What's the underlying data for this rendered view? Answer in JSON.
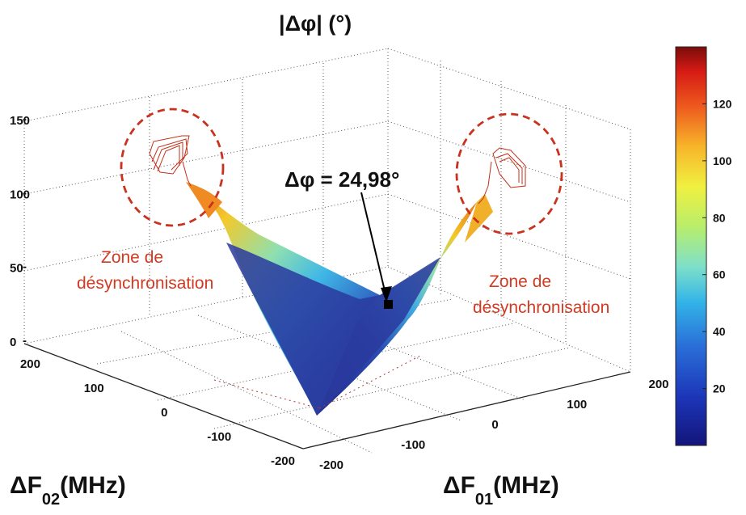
{
  "chart_data": {
    "type": "surface",
    "z_title_prefix": "|",
    "z_title_delta": "Δφ",
    "z_title_suffix": "| (°)",
    "x_title_main": "ΔF",
    "x_title_sub": "01",
    "x_title_unit": "(MHz)",
    "y_title_main": "ΔF",
    "y_title_sub": "02",
    "y_title_unit": "(MHz)",
    "x_ticks": [
      "-200",
      "-100",
      "0",
      "100",
      "200"
    ],
    "y_ticks": [
      "-200",
      "-100",
      "0",
      "100",
      "200"
    ],
    "z_ticks": [
      "0",
      "50",
      "100",
      "150"
    ],
    "xlim": [
      -200,
      200
    ],
    "ylim": [
      -200,
      200
    ],
    "zlim": [
      0,
      150
    ],
    "colorbar": {
      "ticks": [
        "20",
        "40",
        "60",
        "80",
        "100",
        "120"
      ],
      "range": [
        0,
        140
      ],
      "colormap": "jet"
    },
    "annotation": {
      "text": "Δφ = 24,98°",
      "x": 0,
      "y": 0,
      "z": 24.98
    },
    "zones": [
      {
        "line1": "Zone de",
        "line2": "désynchronisation"
      },
      {
        "line1": "Zone de",
        "line2": "désynchronisation"
      }
    ],
    "grid": true
  }
}
